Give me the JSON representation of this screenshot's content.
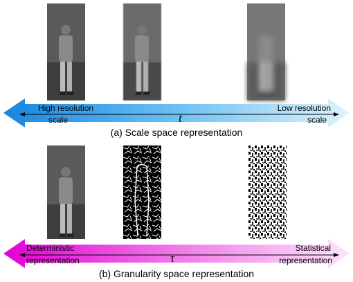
{
  "figure": {
    "panel_a": {
      "left_label": [
        "High resolution",
        "scale"
      ],
      "axis_symbol": "t",
      "right_label": [
        "Low resolution",
        "scale"
      ],
      "caption": "(a) Scale space representation"
    },
    "panel_b": {
      "left_label": [
        "Deterministic",
        "representation"
      ],
      "axis_symbol": "τ",
      "right_label": [
        "Statistical",
        "representation"
      ],
      "caption": "(b) Granularity space representation"
    }
  }
}
